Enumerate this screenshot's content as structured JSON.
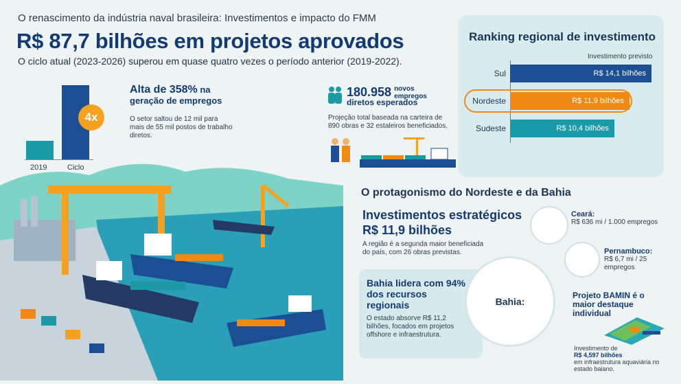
{
  "header": {
    "kicker": "O renascimento da indústria naval brasileira: Investimentos e impacto do FMM",
    "headline": "R$ 87,7 bilhões em projetos aprovados",
    "subline": "O ciclo atual (2023-2026) superou em quase quatro vezes o período anterior (2019-2022)."
  },
  "growth_chart": {
    "multiplier": "4x",
    "categories": [
      "2019",
      "Ciclo"
    ],
    "relative_values": [
      1,
      4
    ]
  },
  "employment": {
    "title_line1": "Alta de 358%",
    "title_suffix": " na",
    "title_line2": "geração de empregos",
    "description": "O setor saltou de 12 mil para mais de 55 mil postos de trabalho diretos."
  },
  "jobs": {
    "number": "180.958",
    "number_suffix": "novos empregos",
    "line2": "diretos esperados",
    "description": "Projeção total baseada na carteira de 890 obras e 32 estaleiros beneficiados."
  },
  "ranking": {
    "title": "Ranking regional de investimento",
    "subtitle": "Investimento previsto",
    "chart_data": {
      "type": "bar",
      "orientation": "horizontal",
      "categories": [
        "Sul",
        "Nordeste",
        "Sudeste"
      ],
      "values": [
        14.1,
        11.9,
        10.4
      ],
      "labels": [
        "R$ 14,1 bilhões",
        "R$ 11,9 bilhões",
        "R$ 10,4 bilhões"
      ],
      "colors": [
        "#1c4e93",
        "#f08a14",
        "#1a9aa8"
      ]
    }
  },
  "northeast": {
    "section_title": "O protagonismo do Nordeste e da Bahia",
    "invest_title_line1": "Investimentos estratégicos",
    "invest_title_line2": "R$ 11,9 bilhões",
    "invest_desc": "A região é a segunda maior beneficiada do país, com 26 obras previstas.",
    "ceara_title": "Ceará:",
    "ceara_desc": "R$ 636 mi / 1.000 empregos",
    "pernambuco_title": "Pernambuco:",
    "pernambuco_desc": "R$ 6,7 mi / 25 empregos",
    "bahia_circle": "Bahia:"
  },
  "bahia": {
    "title": "Bahia lidera com 94% dos recursos regionais",
    "description": "O estado absorve R$ 11,2 bilhões, focados em projetos offshore e infraestrutura."
  },
  "bamin": {
    "title": "Projeto BAMIN é o maior destaque individual",
    "desc_prefix": "Investimento de",
    "amount": "R$ 4,597 bilhões",
    "desc_suffix": "em infraestrutura aquaviária no estado baiano."
  }
}
